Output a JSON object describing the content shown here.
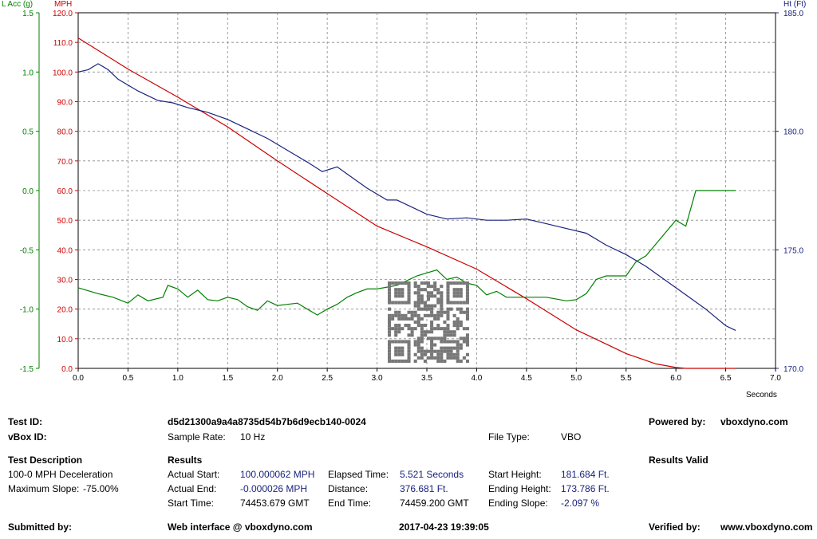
{
  "chart_data": {
    "type": "line",
    "x_axis": {
      "label": "Seconds",
      "range": [
        0,
        7
      ],
      "ticks": [
        "0.0",
        "0.5",
        "1.0",
        "1.5",
        "2.0",
        "2.5",
        "3.0",
        "3.5",
        "4.0",
        "4.5",
        "5.0",
        "5.5",
        "6.0",
        "6.5",
        "7.0"
      ]
    },
    "left_axis_outer": {
      "label": "L Acc (g)",
      "range": [
        -1.5,
        1.5
      ],
      "ticks": [
        "1.5",
        "1.0",
        "0.5",
        "0.0",
        "-0.5",
        "-1.0",
        "-1.5"
      ],
      "color": "#008000"
    },
    "left_axis_inner": {
      "label": "MPH",
      "range": [
        0,
        120
      ],
      "ticks": [
        "120.0",
        "110.0",
        "100.0",
        "90.0",
        "80.0",
        "70.0",
        "60.0",
        "50.0",
        "40.0",
        "30.0",
        "20.0",
        "10.0",
        "0.0"
      ],
      "color": "#cc0000"
    },
    "right_axis": {
      "label": "Ht (Ft)",
      "range": [
        170,
        185
      ],
      "ticks": [
        "185.0",
        "180.0",
        "175.0",
        "170.0"
      ],
      "color": "#1a237e"
    },
    "grid": true,
    "series": [
      {
        "id": "speed",
        "axis": "mph",
        "color": "#cc0000",
        "x": [
          0.0,
          0.5,
          1.0,
          1.5,
          2.0,
          2.5,
          3.0,
          3.5,
          4.0,
          4.5,
          5.0,
          5.5,
          5.8,
          6.0,
          6.1,
          6.6
        ],
        "y": [
          111.5,
          101,
          91.5,
          81.5,
          70,
          59,
          48,
          41,
          33.5,
          23.5,
          13,
          5,
          1.5,
          0.3,
          0,
          0
        ]
      },
      {
        "id": "height",
        "axis": "ft",
        "color": "#1a237e",
        "x": [
          0.0,
          0.1,
          0.2,
          0.3,
          0.4,
          0.6,
          0.8,
          0.95,
          1.1,
          1.3,
          1.5,
          1.7,
          1.9,
          2.1,
          2.3,
          2.45,
          2.6,
          2.7,
          2.9,
          3.1,
          3.2,
          3.3,
          3.5,
          3.7,
          3.9,
          4.1,
          4.3,
          4.5,
          4.7,
          4.9,
          5.1,
          5.3,
          5.5,
          5.7,
          5.9,
          6.1,
          6.3,
          6.5,
          6.6
        ],
        "y": [
          182.5,
          182.6,
          182.85,
          182.6,
          182.2,
          181.7,
          181.3,
          181.2,
          181.0,
          180.8,
          180.5,
          180.1,
          179.7,
          179.2,
          178.7,
          178.3,
          178.5,
          178.2,
          177.6,
          177.1,
          177.1,
          176.9,
          176.5,
          176.3,
          176.35,
          176.25,
          176.25,
          176.3,
          176.1,
          175.9,
          175.7,
          175.2,
          174.8,
          174.3,
          173.7,
          173.1,
          172.5,
          171.8,
          171.6
        ]
      },
      {
        "id": "lat_acc",
        "axis": "g",
        "color": "#008000",
        "x": [
          0.0,
          0.2,
          0.35,
          0.5,
          0.6,
          0.7,
          0.85,
          0.9,
          1.0,
          1.1,
          1.2,
          1.3,
          1.4,
          1.5,
          1.6,
          1.7,
          1.8,
          1.9,
          2.0,
          2.1,
          2.2,
          2.3,
          2.4,
          2.5,
          2.6,
          2.7,
          2.8,
          2.9,
          3.0,
          3.2,
          3.4,
          3.6,
          3.7,
          3.8,
          3.9,
          4.0,
          4.1,
          4.2,
          4.3,
          4.5,
          4.7,
          4.9,
          5.0,
          5.1,
          5.2,
          5.3,
          5.4,
          5.5,
          5.6,
          5.7,
          5.8,
          5.9,
          6.0,
          6.1,
          6.2,
          6.3,
          6.6
        ],
        "y": [
          -0.82,
          -0.87,
          -0.9,
          -0.95,
          -0.88,
          -0.93,
          -0.9,
          -0.8,
          -0.83,
          -0.9,
          -0.84,
          -0.92,
          -0.93,
          -0.9,
          -0.92,
          -0.98,
          -1.01,
          -0.93,
          -0.97,
          -0.96,
          -0.95,
          -1.0,
          -1.05,
          -1.0,
          -0.96,
          -0.9,
          -0.86,
          -0.83,
          -0.83,
          -0.8,
          -0.72,
          -0.67,
          -0.75,
          -0.73,
          -0.78,
          -0.8,
          -0.88,
          -0.85,
          -0.9,
          -0.9,
          -0.9,
          -0.93,
          -0.92,
          -0.87,
          -0.75,
          -0.72,
          -0.72,
          -0.72,
          -0.6,
          -0.55,
          -0.45,
          -0.35,
          -0.25,
          -0.3,
          0.0,
          0.0,
          0.0
        ]
      }
    ]
  },
  "info": {
    "test_id_label": "Test ID:",
    "test_id_value": "d5d21300a9a4a8735d54b7b6d9ecb140-0024",
    "powered_by_label": "Powered by:",
    "powered_by_value": "vboxdyno.com",
    "vbox_id_label": "vBox ID:",
    "sample_rate_label": "Sample Rate:",
    "sample_rate_value": "10 Hz",
    "file_type_label": "File Type:",
    "file_type_value": "VBO",
    "test_description_label": "Test Description",
    "results_label": "Results",
    "results_valid": "Results Valid",
    "description_line1": "100-0 MPH Deceleration",
    "max_slope_label": "Maximum Slope:",
    "max_slope_value": "-75.00%",
    "actual_start_label": "Actual Start:",
    "actual_start_value": "100.000062 MPH",
    "elapsed_time_label": "Elapsed Time:",
    "elapsed_time_value": "5.521 Seconds",
    "start_height_label": "Start Height:",
    "start_height_value": "181.684 Ft.",
    "actual_end_label": "Actual End:",
    "actual_end_value": "-0.000026 MPH",
    "distance_label": "Distance:",
    "distance_value": "376.681 Ft.",
    "ending_height_label": "Ending Height:",
    "ending_height_value": "173.786 Ft.",
    "start_time_label": "Start Time:",
    "start_time_value": "74453.679 GMT",
    "end_time_label": "End Time:",
    "end_time_value": "74459.200 GMT",
    "ending_slope_label": "Ending Slope:",
    "ending_slope_value": "-2.097 %",
    "submitted_by_label": "Submitted by:",
    "web_interface": "Web interface @ vboxdyno.com",
    "timestamp": "2017-04-23 19:39:05",
    "verified_by_label": "Verified by:",
    "verified_by_value": "www.vboxdyno.com"
  }
}
